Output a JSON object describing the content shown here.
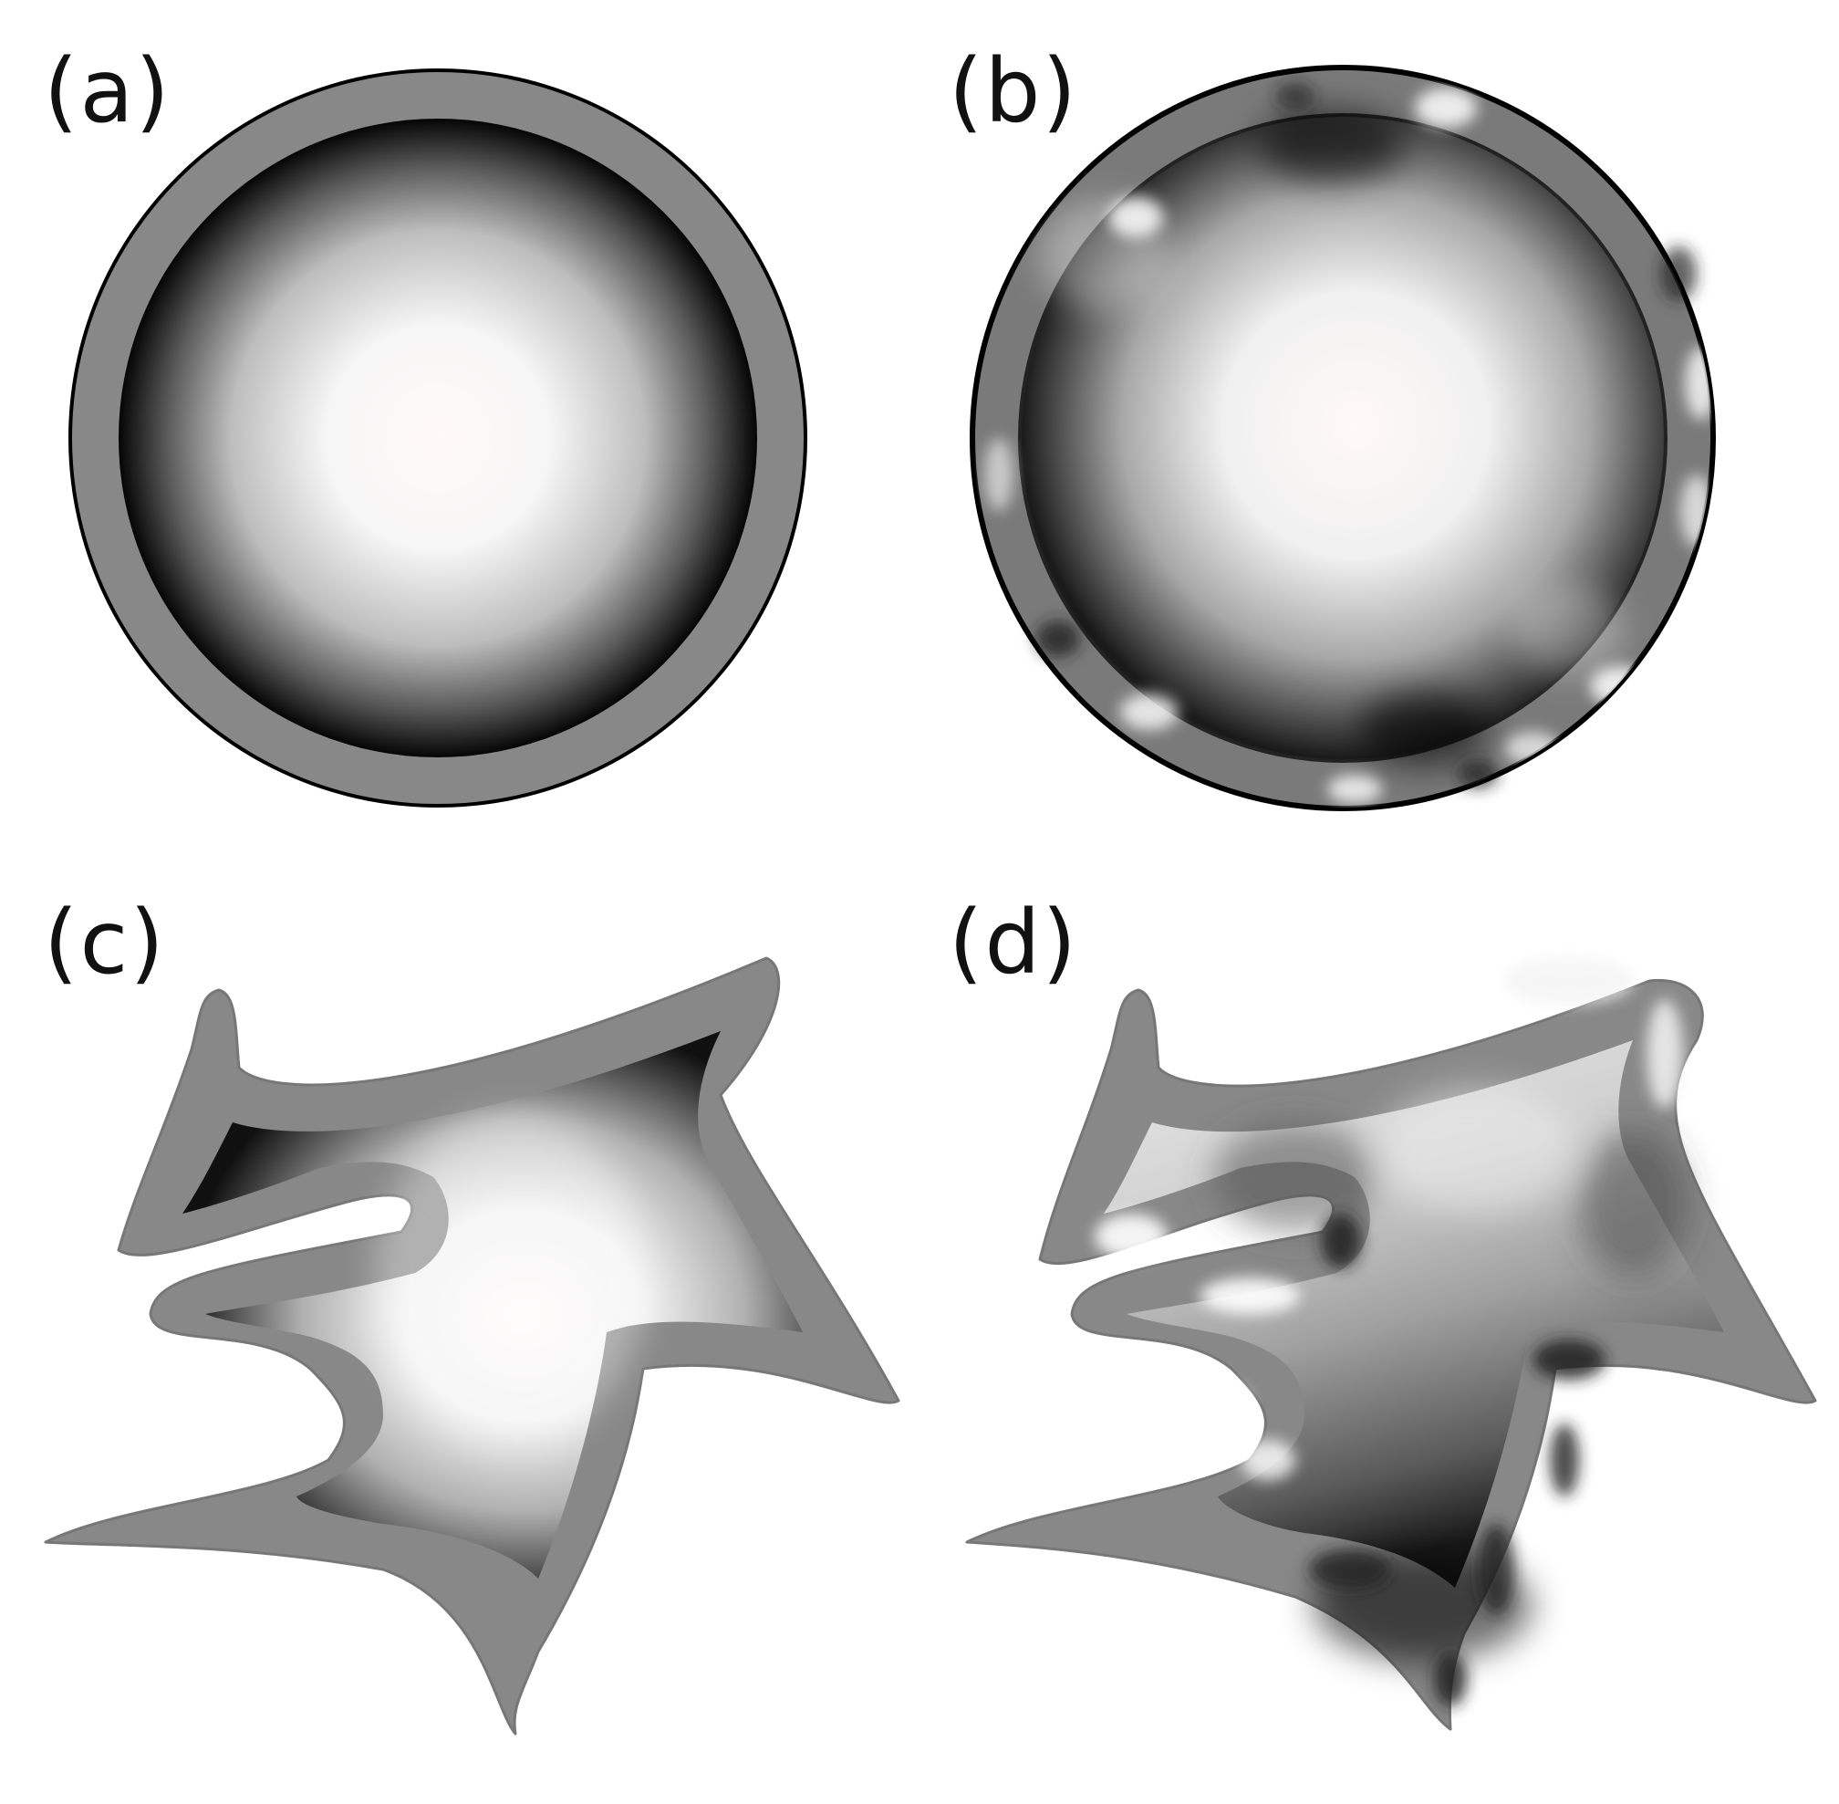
{
  "figure": {
    "panels": [
      {
        "id": "a",
        "label": "(a)"
      },
      {
        "id": "b",
        "label": "(b)"
      },
      {
        "id": "c",
        "label": "(c)"
      },
      {
        "id": "d",
        "label": "(d)"
      }
    ],
    "colors": {
      "boundary": "#888888",
      "boundary_outline": "#000000",
      "field_light": "#ffffff",
      "field_dark": "#000000"
    }
  }
}
